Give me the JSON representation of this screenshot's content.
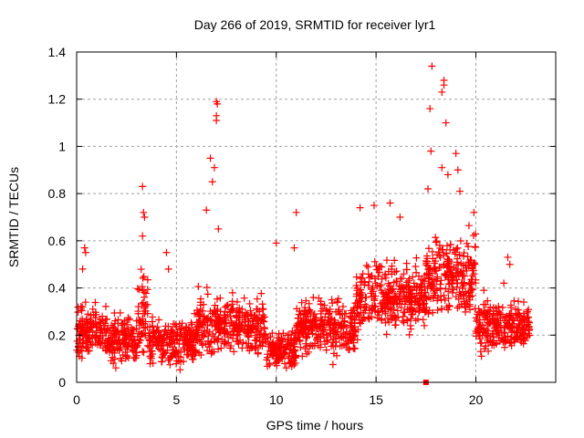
{
  "chart_data": {
    "type": "scatter",
    "title": "Day 266 of 2019, SRMTID for receiver lyr1",
    "xlabel": "GPS time / hours",
    "ylabel": "SRMTID / TECUs",
    "xlim": [
      0,
      24
    ],
    "ylim": [
      0,
      1.4
    ],
    "xticks": [
      0,
      5,
      10,
      15,
      20
    ],
    "yticks": [
      0,
      0.2,
      0.4,
      0.6,
      0.8,
      1,
      1.2,
      1.4
    ],
    "ytick_labels": [
      "0",
      "0.2",
      "0.4",
      "0.6",
      "0.8",
      "1",
      "1.2",
      "1.4"
    ],
    "grid": true,
    "legend": "none",
    "series": [
      {
        "name": "SRMTID",
        "marker": "plus",
        "color": "#ff0000",
        "envelope": [
          {
            "x": [
              0.0,
              1.5
            ],
            "mean": 0.22,
            "spread": 0.09
          },
          {
            "x": [
              1.5,
              3.0
            ],
            "mean": 0.18,
            "spread": 0.08
          },
          {
            "x": [
              3.0,
              3.6
            ],
            "mean": 0.28,
            "spread": 0.12
          },
          {
            "x": [
              3.6,
              6.0
            ],
            "mean": 0.17,
            "spread": 0.07
          },
          {
            "x": [
              6.0,
              7.0
            ],
            "mean": 0.24,
            "spread": 0.1
          },
          {
            "x": [
              7.0,
              9.5
            ],
            "mean": 0.24,
            "spread": 0.09
          },
          {
            "x": [
              9.5,
              11.0
            ],
            "mean": 0.14,
            "spread": 0.06
          },
          {
            "x": [
              11.0,
              14.0
            ],
            "mean": 0.24,
            "spread": 0.09
          },
          {
            "x": [
              14.0,
              17.5
            ],
            "mean": 0.36,
            "spread": 0.11
          },
          {
            "x": [
              17.5,
              20.0
            ],
            "mean": 0.45,
            "spread": 0.13
          },
          {
            "x": [
              20.0,
              21.5
            ],
            "mean": 0.24,
            "spread": 0.08
          },
          {
            "x": [
              21.5,
              22.7
            ],
            "mean": 0.24,
            "spread": 0.07
          }
        ],
        "peaks": [
          {
            "x": 0.4,
            "y": 0.57
          },
          {
            "x": 0.45,
            "y": 0.55
          },
          {
            "x": 0.3,
            "y": 0.48
          },
          {
            "x": 3.3,
            "y": 0.83
          },
          {
            "x": 3.35,
            "y": 0.72
          },
          {
            "x": 3.4,
            "y": 0.7
          },
          {
            "x": 3.3,
            "y": 0.62
          },
          {
            "x": 4.5,
            "y": 0.55
          },
          {
            "x": 4.6,
            "y": 0.48
          },
          {
            "x": 6.7,
            "y": 0.95
          },
          {
            "x": 6.9,
            "y": 0.91
          },
          {
            "x": 6.8,
            "y": 0.85
          },
          {
            "x": 7.0,
            "y": 1.19
          },
          {
            "x": 7.05,
            "y": 1.18
          },
          {
            "x": 7.0,
            "y": 1.13
          },
          {
            "x": 7.0,
            "y": 1.11
          },
          {
            "x": 6.5,
            "y": 0.73
          },
          {
            "x": 7.1,
            "y": 0.65
          },
          {
            "x": 10.0,
            "y": 0.59
          },
          {
            "x": 11.0,
            "y": 0.72
          },
          {
            "x": 10.9,
            "y": 0.57
          },
          {
            "x": 14.2,
            "y": 0.74
          },
          {
            "x": 14.9,
            "y": 0.75
          },
          {
            "x": 15.7,
            "y": 0.76
          },
          {
            "x": 16.2,
            "y": 0.7
          },
          {
            "x": 17.7,
            "y": 1.16
          },
          {
            "x": 17.8,
            "y": 1.34
          },
          {
            "x": 17.75,
            "y": 0.98
          },
          {
            "x": 18.3,
            "y": 1.23
          },
          {
            "x": 18.4,
            "y": 1.28
          },
          {
            "x": 18.4,
            "y": 1.26
          },
          {
            "x": 18.5,
            "y": 1.1
          },
          {
            "x": 18.3,
            "y": 0.91
          },
          {
            "x": 18.6,
            "y": 0.88
          },
          {
            "x": 19.0,
            "y": 0.97
          },
          {
            "x": 19.1,
            "y": 0.9
          },
          {
            "x": 19.2,
            "y": 0.81
          },
          {
            "x": 17.6,
            "y": 0.82
          },
          {
            "x": 19.9,
            "y": 0.72
          },
          {
            "x": 21.6,
            "y": 0.53
          },
          {
            "x": 21.7,
            "y": 0.5
          },
          {
            "x": 21.4,
            "y": 0.42
          },
          {
            "x": 20.4,
            "y": 0.39
          },
          {
            "x": 22.4,
            "y": 0.34
          }
        ],
        "gaps": []
      },
      {
        "name": "marker",
        "marker": "square",
        "color": "#ff0000",
        "points": [
          {
            "x": 17.5,
            "y": 0
          }
        ]
      }
    ]
  }
}
